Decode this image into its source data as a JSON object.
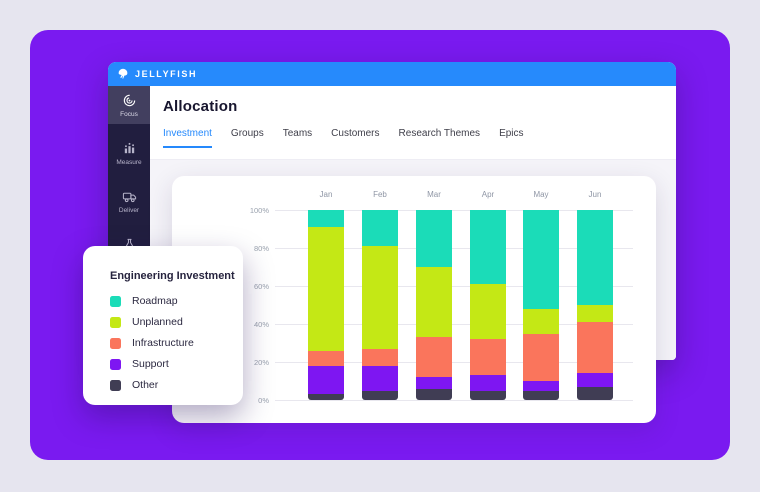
{
  "app": {
    "brand": "JELLYFISH",
    "page_title": "Allocation",
    "sidebar": {
      "items": [
        {
          "label": "Focus",
          "icon": "focus-icon",
          "active": true
        },
        {
          "label": "Measure",
          "icon": "measure-icon",
          "active": false
        },
        {
          "label": "Deliver",
          "icon": "deliver-icon",
          "active": false
        },
        {
          "label": "Labs",
          "icon": "labs-icon",
          "active": false
        }
      ]
    },
    "tabs": [
      {
        "label": "Investment",
        "active": true
      },
      {
        "label": "Groups",
        "active": false
      },
      {
        "label": "Teams",
        "active": false
      },
      {
        "label": "Customers",
        "active": false
      },
      {
        "label": "Research Themes",
        "active": false
      },
      {
        "label": "Epics",
        "active": false
      }
    ]
  },
  "legend": {
    "title": "Engineering Investment",
    "items": [
      {
        "label": "Roadmap",
        "color": "#1bdcb8"
      },
      {
        "label": "Unplanned",
        "color": "#c4e815"
      },
      {
        "label": "Infrastructure",
        "color": "#fa755c"
      },
      {
        "label": "Support",
        "color": "#7e16f2"
      },
      {
        "label": "Other",
        "color": "#403d54"
      }
    ]
  },
  "chart_data": {
    "type": "bar",
    "stacked": true,
    "unit": "percent",
    "title": "Engineering Investment",
    "xlabel": "",
    "ylabel": "",
    "grid": true,
    "legend_position": "floating-card-left",
    "categories": [
      "Jan",
      "Feb",
      "Mar",
      "Apr",
      "May",
      "Jun"
    ],
    "series": [
      {
        "name": "Roadmap",
        "color": "#1bdcb8",
        "values": [
          9,
          19,
          30,
          39,
          52,
          50
        ]
      },
      {
        "name": "Unplanned",
        "color": "#c4e815",
        "values": [
          65,
          54,
          37,
          29,
          13,
          9
        ]
      },
      {
        "name": "Infrastructure",
        "color": "#fa755c",
        "values": [
          8,
          9,
          21,
          19,
          25,
          27
        ]
      },
      {
        "name": "Support",
        "color": "#7e16f2",
        "values": [
          15,
          13,
          6,
          8,
          5,
          7
        ]
      },
      {
        "name": "Other",
        "color": "#403d54",
        "values": [
          3,
          5,
          6,
          5,
          5,
          7
        ]
      }
    ],
    "stack_order_bottom_to_top": [
      "Other",
      "Support",
      "Infrastructure",
      "Unplanned",
      "Roadmap"
    ],
    "ylim": [
      0,
      100
    ],
    "ytick_labels": [
      "0%",
      "20%",
      "40%",
      "60%",
      "80%",
      "100%"
    ]
  },
  "colors": {
    "backdrop": "#e6e5ef",
    "panel": "#7a1af0",
    "topbar": "#268afc",
    "sidebar": "#211e3f",
    "sidebar_active": "#423f5f",
    "accent_blue": "#2589fc",
    "content_bg": "#f5f4f9",
    "gridline": "#e8e7ee"
  }
}
